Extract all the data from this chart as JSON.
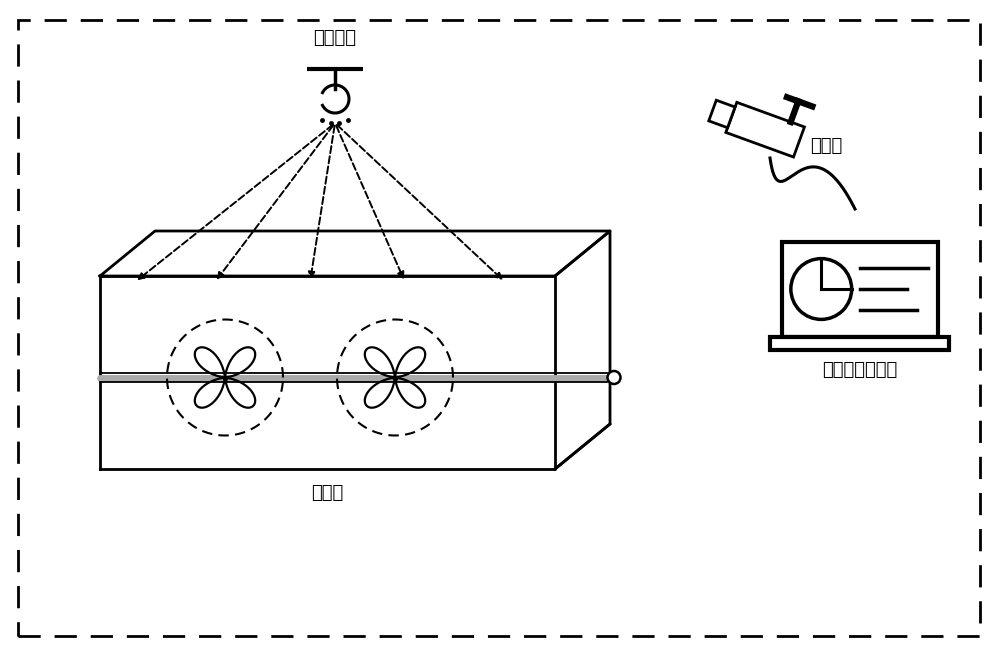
{
  "bg_color": "#ffffff",
  "border_color": "#000000",
  "text_color": "#000000",
  "label_light": "照明灯光",
  "label_camera": "摄像机",
  "label_mixer": "搅拌机",
  "label_computer": "图像或视频采集",
  "font_size_label": 13,
  "fig_w": 10.0,
  "fig_h": 6.54,
  "dpi": 100
}
